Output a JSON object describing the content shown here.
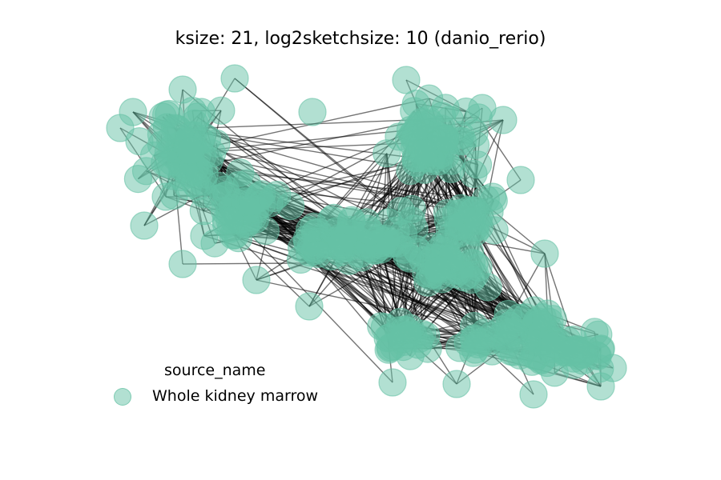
{
  "title": "ksize: 21, log2sketchsize: 10 (danio_rerio)",
  "legend": {
    "title": "source_name",
    "items": [
      {
        "label": "Whole kidney marrow",
        "color": "#66c2a5"
      }
    ]
  },
  "graph": {
    "node_color": "#66c2a5",
    "node_opacity": 0.5,
    "edge_color": "#000000",
    "edge_opacity": 0.55
  }
}
